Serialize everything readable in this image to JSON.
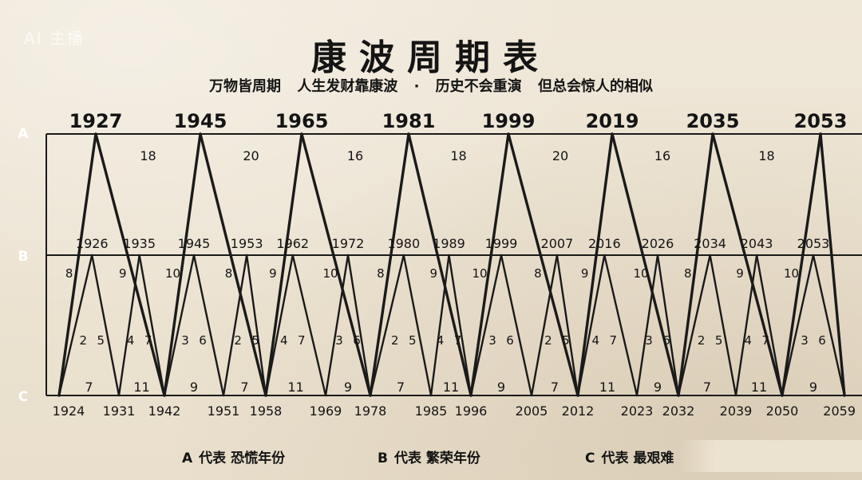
{
  "watermark": "AI 主播",
  "title": "康波周期表",
  "subtitle": "万物皆周期   人生发财靠康波 ·  历史不会重演   但总会惊人的相似",
  "rows": {
    "a": "A",
    "b": "B",
    "c": "C"
  },
  "a_years": [
    "1927",
    "1945",
    "1965",
    "1981",
    "1999",
    "2019",
    "2035",
    "2053"
  ],
  "a_intervals": [
    "18",
    "20",
    "16",
    "18",
    "20",
    "16",
    "18"
  ],
  "b_years": [
    "1926",
    "1935",
    "1945",
    "1953",
    "1962",
    "1972",
    "1980",
    "1989",
    "1999",
    "2007",
    "2016",
    "2026",
    "2034",
    "2043",
    "2053"
  ],
  "c_years": [
    "1924",
    "1931",
    "1942",
    "1951",
    "1958",
    "1969",
    "1978",
    "1985",
    "1996",
    "2005",
    "2012",
    "2023",
    "2032",
    "2039",
    "2050",
    "2059"
  ],
  "c_intervals": [
    "7",
    "11",
    "9",
    "7",
    "11",
    "9",
    "7",
    "11",
    "9",
    "7",
    "11",
    "9",
    "7",
    "11",
    "9"
  ],
  "b_side_labels": [
    "8",
    "9",
    "10",
    "8",
    "9",
    "10",
    "8",
    "9",
    "10",
    "8",
    "9",
    "10",
    "8",
    "9",
    "10"
  ],
  "mid_labels": [
    "2",
    "5",
    "4",
    "7",
    "3",
    "6",
    "2",
    "5",
    "4",
    "7",
    "3",
    "6",
    "2",
    "5",
    "4",
    "7",
    "3",
    "6",
    "2",
    "5",
    "4",
    "7",
    "3",
    "6",
    "2",
    "5",
    "4",
    "7",
    "3",
    "6"
  ],
  "legend": [
    {
      "letter": "A",
      "text": "代表 恐慌年份"
    },
    {
      "letter": "B",
      "text": "代表 繁荣年份"
    },
    {
      "letter": "C",
      "text": "代表 最艰难"
    }
  ]
}
